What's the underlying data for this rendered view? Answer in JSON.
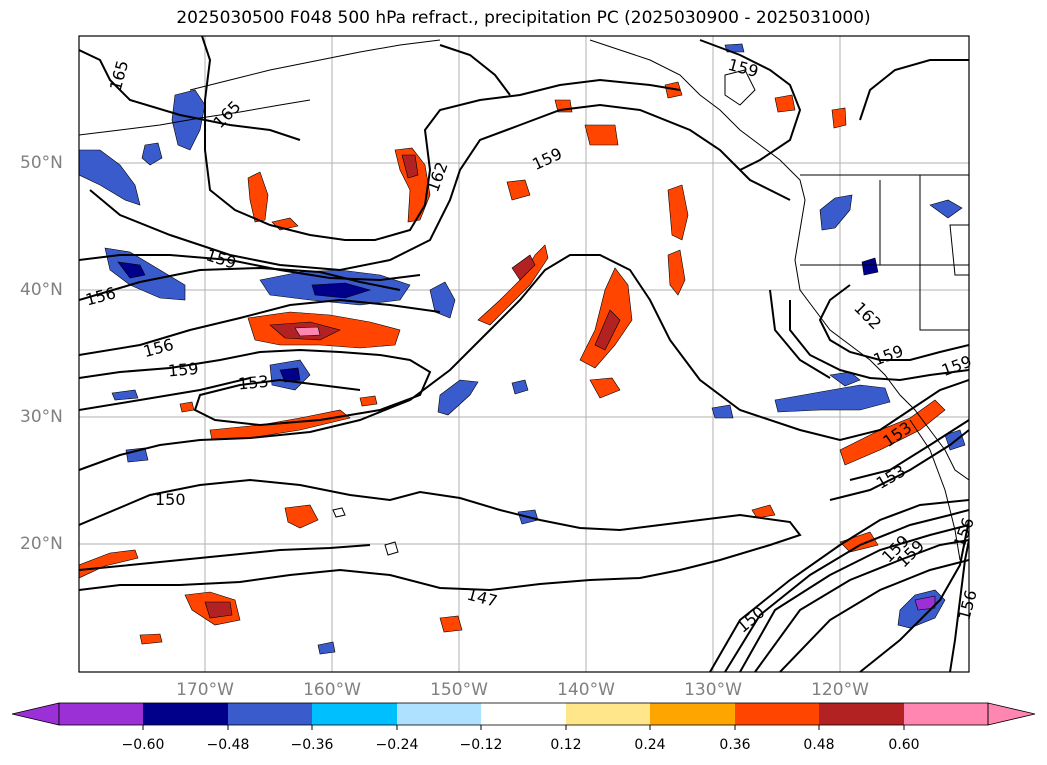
{
  "title": "2025030500 F048 500 hPa refract., precipitation PC (2025030900 - 2025031000)",
  "latitude_labels": [
    "50°N",
    "40°N",
    "30°N",
    "20°N"
  ],
  "longitude_labels": [
    "170°W",
    "160°W",
    "150°W",
    "140°W",
    "130°W",
    "120°W"
  ],
  "contour_labels": [
    "165",
    "165",
    "162",
    "159",
    "159",
    "159",
    "156",
    "156",
    "159",
    "153",
    "150",
    "147",
    "150",
    "153",
    "153",
    "159",
    "156",
    "162",
    "159",
    "159",
    "156",
    "159"
  ],
  "colorbar": {
    "colors": [
      "#9b30d6",
      "#00008b",
      "#3a5bcc",
      "#00bfff",
      "#aee0ff",
      "#ffffff",
      "#ffe68a",
      "#ffa500",
      "#ff4500",
      "#b22222",
      "#ff86b1"
    ],
    "tick_labels": [
      "−0.60",
      "−0.48",
      "−0.36",
      "−0.24",
      "−0.12",
      "0.12",
      "0.24",
      "0.36",
      "0.48",
      "0.60"
    ]
  }
}
